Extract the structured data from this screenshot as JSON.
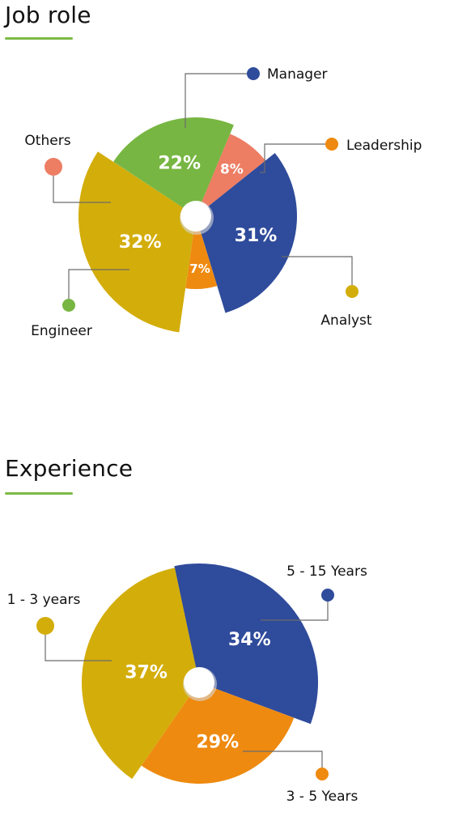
{
  "accent_color": "#7cba45",
  "chart_data": [
    {
      "type": "pie",
      "title": "Job role",
      "slices": [
        {
          "label": "Manager",
          "value": 31,
          "display": "31%",
          "color": "#2f4b9b"
        },
        {
          "label": "Leadership",
          "value": 7,
          "display": "7%",
          "color": "#ee8a10"
        },
        {
          "label": "Analyst",
          "value": 32,
          "display": "32%",
          "color": "#d3ad0a"
        },
        {
          "label": "Engineer",
          "value": 22,
          "display": "22%",
          "color": "#77b642"
        },
        {
          "label": "Others",
          "value": 8,
          "display": "8%",
          "color": "#ed7d63"
        }
      ]
    },
    {
      "type": "pie",
      "title": "Experience",
      "slices": [
        {
          "label": "5 - 15 Years",
          "value": 34,
          "display": "34%",
          "color": "#2f4b9b"
        },
        {
          "label": "3 - 5 Years",
          "value": 29,
          "display": "29%",
          "color": "#ee8a10"
        },
        {
          "label": "1 - 3 years",
          "value": 37,
          "display": "37%",
          "color": "#d3ad0a"
        }
      ]
    }
  ]
}
